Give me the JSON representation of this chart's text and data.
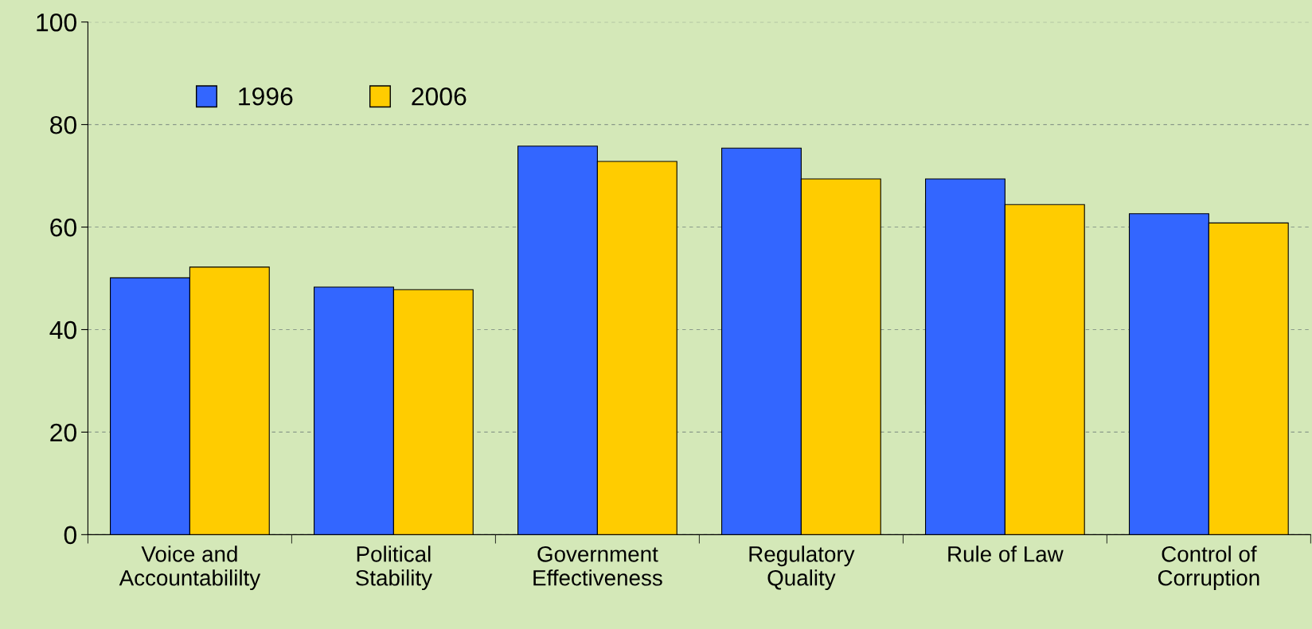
{
  "chart_data": {
    "type": "bar",
    "categories": [
      "Voice and\nAccountabililty",
      "Political\nStability",
      "Government\nEffectiveness",
      "Regulatory\nQuality",
      "Rule of Law",
      "Control of\nCorruption"
    ],
    "series": [
      {
        "name": "1996",
        "color": "#3366ff",
        "values": [
          50.1,
          48.3,
          75.8,
          75.4,
          69.4,
          62.6
        ]
      },
      {
        "name": "2006",
        "color": "#ffcc00",
        "values": [
          52.2,
          47.8,
          72.8,
          69.4,
          64.4,
          60.8
        ]
      }
    ],
    "ylim": [
      0,
      100
    ],
    "yticks": [
      0,
      20,
      40,
      60,
      80,
      100
    ],
    "grid": "y",
    "legend": "top left"
  }
}
